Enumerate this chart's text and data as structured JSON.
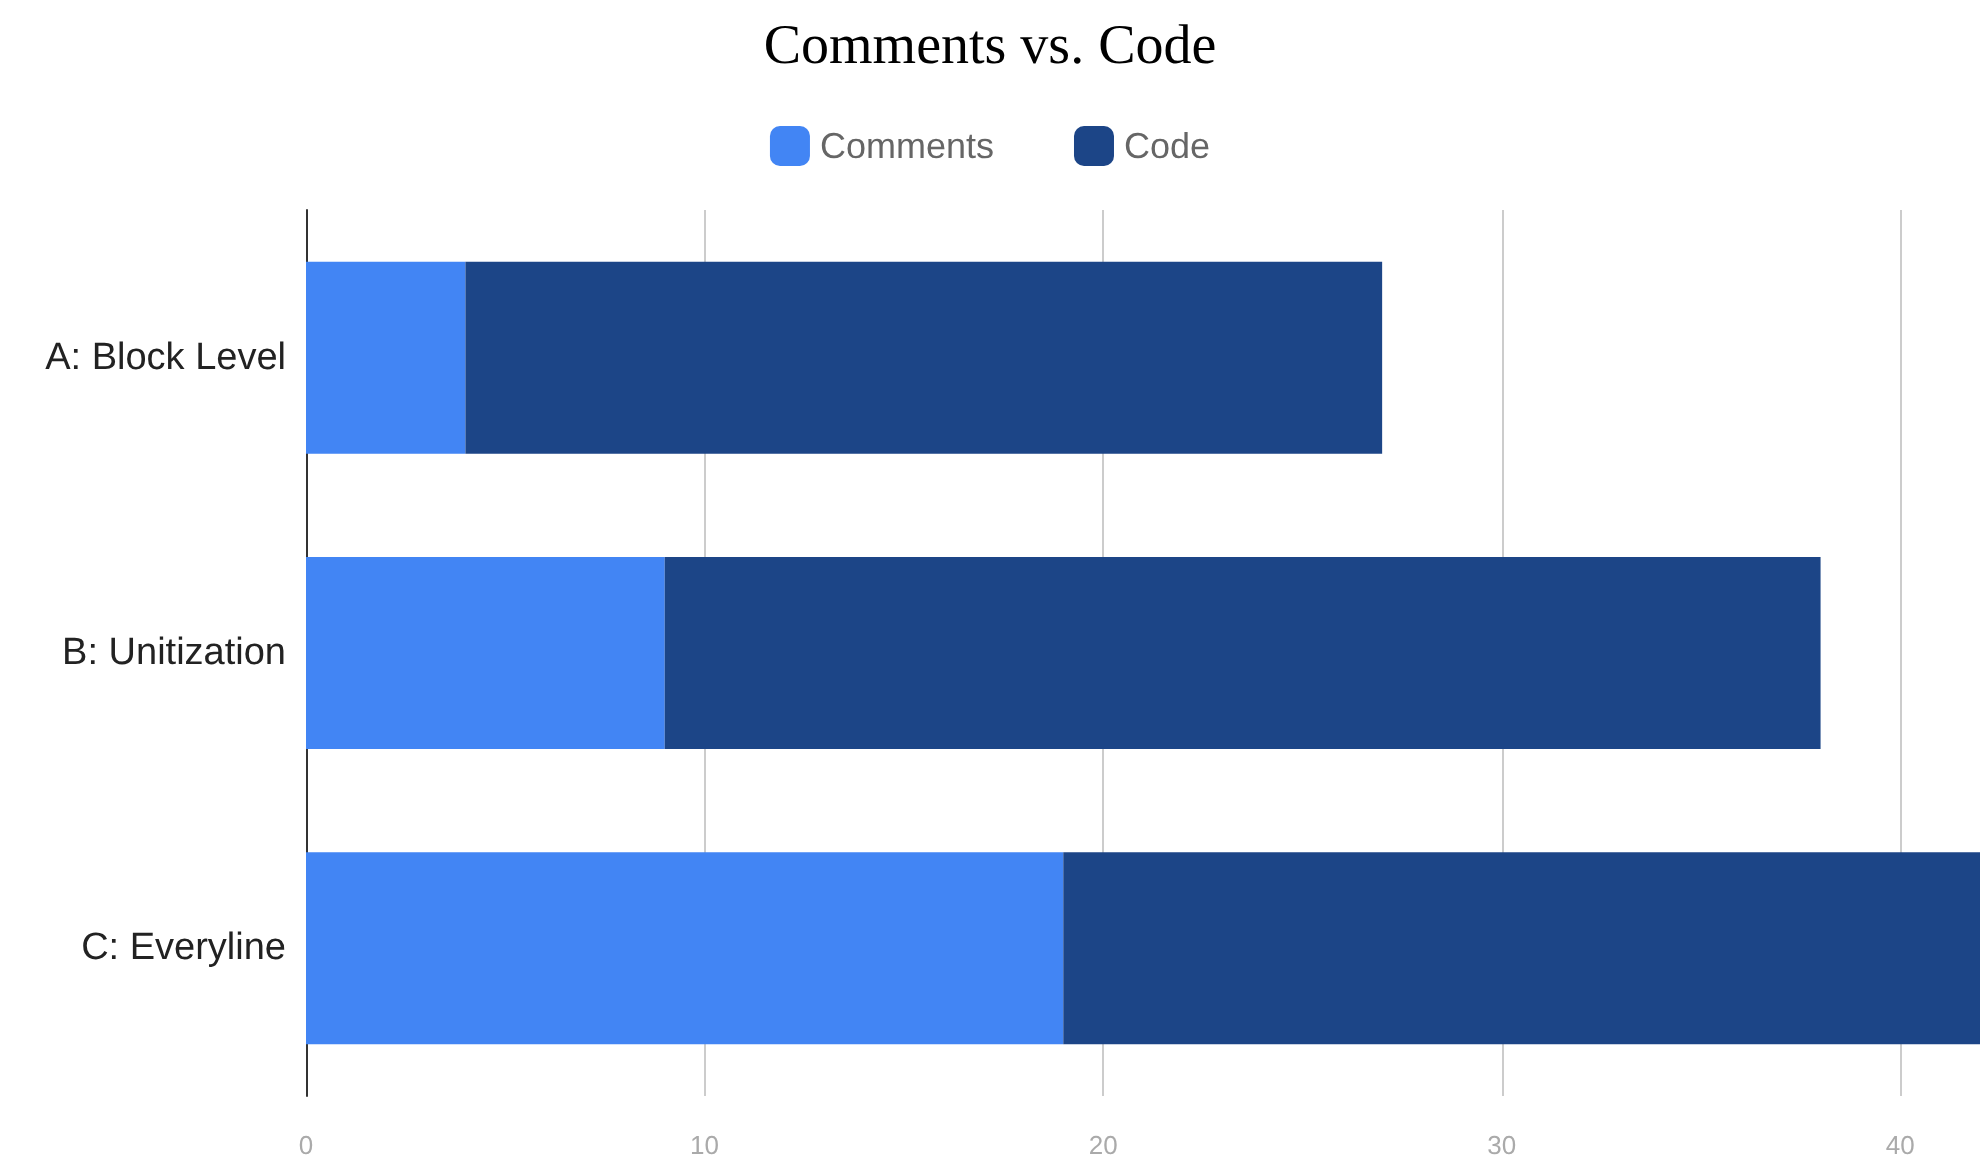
{
  "chart_data": {
    "type": "bar",
    "title": "Comments vs. Code",
    "orientation": "horizontal",
    "stacked": true,
    "categories": [
      "A: Block Level",
      "B: Unitization",
      "C: Everyline"
    ],
    "series": [
      {
        "name": "Comments",
        "color": "#4285f4",
        "values": [
          4,
          9,
          19
        ]
      },
      {
        "name": "Code",
        "color": "#1c4587",
        "values": [
          23,
          29,
          23
        ]
      }
    ],
    "xlim": [
      0,
      42
    ],
    "xticks": [
      0,
      10,
      20,
      30,
      40
    ],
    "grid": "x",
    "legend": "top"
  }
}
